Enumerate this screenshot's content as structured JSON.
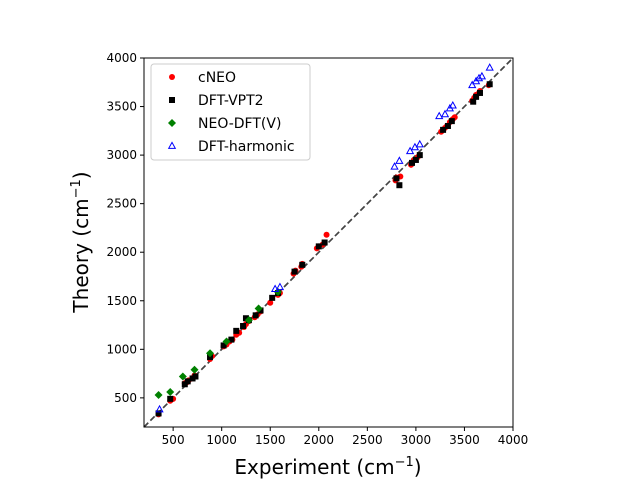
{
  "chart_data": {
    "type": "scatter",
    "xlabel": "Experiment (cm",
    "ylabel": "Theory (cm",
    "label_superscript": "−1",
    "label_close": ")",
    "xlim": [
      200,
      4000
    ],
    "ylim": [
      200,
      4000
    ],
    "xticks": [
      500,
      1000,
      1500,
      2000,
      2500,
      3000,
      3500,
      4000
    ],
    "yticks": [
      500,
      1000,
      1500,
      2000,
      2500,
      3000,
      3500,
      4000
    ],
    "reference_line": "y = x",
    "legend_position": "upper-left",
    "series": [
      {
        "name": "cNEO",
        "marker": "circle",
        "color": "#ff0000",
        "filled": true,
        "points": [
          [
            350,
            330
          ],
          [
            470,
            470
          ],
          [
            500,
            490
          ],
          [
            620,
            650
          ],
          [
            640,
            660
          ],
          [
            660,
            680
          ],
          [
            700,
            700
          ],
          [
            720,
            730
          ],
          [
            880,
            900
          ],
          [
            900,
            930
          ],
          [
            1020,
            1030
          ],
          [
            1050,
            1050
          ],
          [
            1080,
            1080
          ],
          [
            1110,
            1100
          ],
          [
            1150,
            1150
          ],
          [
            1180,
            1170
          ],
          [
            1230,
            1230
          ],
          [
            1250,
            1260
          ],
          [
            1280,
            1290
          ],
          [
            1340,
            1330
          ],
          [
            1370,
            1360
          ],
          [
            1400,
            1390
          ],
          [
            1500,
            1480
          ],
          [
            1580,
            1560
          ],
          [
            1600,
            1580
          ],
          [
            1740,
            1780
          ],
          [
            1760,
            1810
          ],
          [
            1820,
            1850
          ],
          [
            1830,
            1880
          ],
          [
            1980,
            2040
          ],
          [
            2000,
            2060
          ],
          [
            2040,
            2080
          ],
          [
            2080,
            2180
          ],
          [
            2790,
            2740
          ],
          [
            2800,
            2770
          ],
          [
            2840,
            2780
          ],
          [
            2950,
            2900
          ],
          [
            2960,
            2920
          ],
          [
            2980,
            2950
          ],
          [
            3020,
            2980
          ],
          [
            3260,
            3240
          ],
          [
            3300,
            3280
          ],
          [
            3320,
            3300
          ],
          [
            3350,
            3340
          ],
          [
            3380,
            3370
          ],
          [
            3400,
            3390
          ],
          [
            3580,
            3560
          ],
          [
            3600,
            3590
          ],
          [
            3620,
            3620
          ],
          [
            3650,
            3640
          ],
          [
            3660,
            3660
          ],
          [
            3750,
            3720
          ]
        ]
      },
      {
        "name": "DFT-VPT2",
        "marker": "square",
        "color": "#000000",
        "filled": true,
        "points": [
          [
            350,
            340
          ],
          [
            470,
            490
          ],
          [
            620,
            640
          ],
          [
            650,
            670
          ],
          [
            700,
            700
          ],
          [
            730,
            720
          ],
          [
            880,
            920
          ],
          [
            1020,
            1040
          ],
          [
            1100,
            1100
          ],
          [
            1150,
            1190
          ],
          [
            1220,
            1240
          ],
          [
            1250,
            1320
          ],
          [
            1280,
            1300
          ],
          [
            1350,
            1350
          ],
          [
            1400,
            1400
          ],
          [
            1520,
            1530
          ],
          [
            1580,
            1580
          ],
          [
            1750,
            1800
          ],
          [
            1830,
            1870
          ],
          [
            2000,
            2060
          ],
          [
            2060,
            2100
          ],
          [
            2830,
            2690
          ],
          [
            2800,
            2760
          ],
          [
            2960,
            2920
          ],
          [
            3000,
            2950
          ],
          [
            3040,
            3000
          ],
          [
            3280,
            3260
          ],
          [
            3330,
            3300
          ],
          [
            3370,
            3350
          ],
          [
            3590,
            3550
          ],
          [
            3620,
            3600
          ],
          [
            3660,
            3640
          ],
          [
            3760,
            3730
          ]
        ]
      },
      {
        "name": "NEO-DFT(V)",
        "marker": "diamond",
        "color": "#008000",
        "filled": true,
        "points": [
          [
            350,
            530
          ],
          [
            470,
            560
          ],
          [
            600,
            720
          ],
          [
            720,
            790
          ],
          [
            880,
            960
          ],
          [
            1050,
            1080
          ],
          [
            1280,
            1300
          ],
          [
            1380,
            1420
          ],
          [
            1580,
            1590
          ]
        ]
      },
      {
        "name": "DFT-harmonic",
        "marker": "triangle",
        "color": "#0000ff",
        "filled": false,
        "points": [
          [
            360,
            380
          ],
          [
            1550,
            1620
          ],
          [
            1600,
            1640
          ],
          [
            2780,
            2880
          ],
          [
            2830,
            2940
          ],
          [
            2940,
            3040
          ],
          [
            2990,
            3080
          ],
          [
            3040,
            3110
          ],
          [
            3240,
            3400
          ],
          [
            3300,
            3420
          ],
          [
            3350,
            3480
          ],
          [
            3380,
            3510
          ],
          [
            3580,
            3720
          ],
          [
            3620,
            3760
          ],
          [
            3650,
            3790
          ],
          [
            3680,
            3810
          ],
          [
            3760,
            3900
          ]
        ]
      }
    ]
  }
}
